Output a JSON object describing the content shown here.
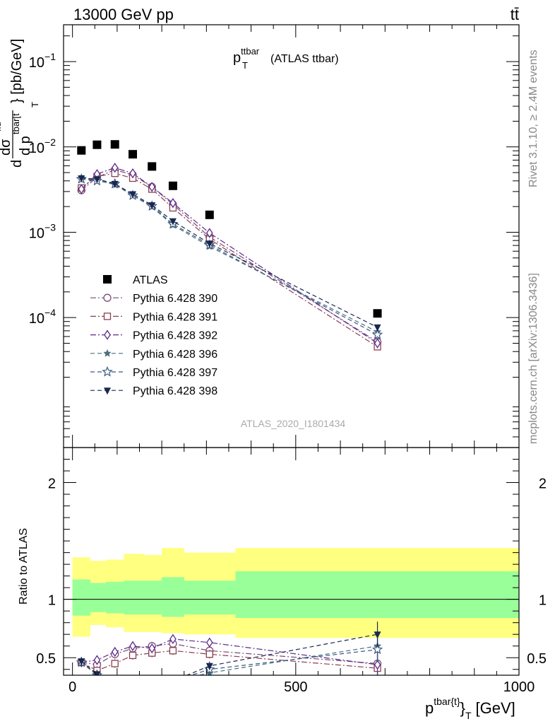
{
  "header": {
    "left": "13000 GeV pp",
    "right": "tt̄",
    "side_top": "Rivet 3.1.10, ≥ 2.4M events",
    "side_bottom": "mcplots.cern.ch [arXiv:1306.3436]"
  },
  "chart_data": [
    {
      "type": "scatter",
      "title_main": "p",
      "title_sup": "ttbar",
      "title_sub": "T",
      "title_rest": "(ATLAS ttbar)",
      "ylabel": "d dσ^fid / d p_T^{tbar[t} } [pb/GeV]",
      "ylabel_parts": {
        "d": "d",
        "dsigma": "dσ",
        "fid": "fid",
        "dp": "d p",
        "tbar": "tbar[t",
        "T": "T",
        "unit": "} [pb/GeV]"
      },
      "watermark": "ATLAS_2020_I1801434",
      "xlim": [
        -20,
        1000
      ],
      "ylim": [
        3e-06,
        0.27
      ],
      "log_y": true,
      "y_ticks": [
        {
          "value": 0.1,
          "base": "10",
          "exp": "−1"
        },
        {
          "value": 0.01,
          "base": "10",
          "exp": "−2"
        },
        {
          "value": 0.001,
          "base": "10",
          "exp": "−3"
        },
        {
          "value": 0.0001,
          "base": "10",
          "exp": "−4"
        }
      ],
      "legend_position": "lower-left",
      "series": [
        {
          "name": "ATLAS",
          "color": "#000000",
          "marker": "square-filled",
          "line": "none",
          "x": [
            20,
            55,
            95,
            135,
            178,
            225,
            307,
            683
          ],
          "y": [
            0.0091,
            0.0106,
            0.0107,
            0.0082,
            0.0059,
            0.0035,
            0.0016,
            0.000112
          ]
        },
        {
          "name": "Pythia 6.428 390",
          "color": "#7a4a7a",
          "marker": "circle-open",
          "line": "dashdot",
          "x": [
            20,
            55,
            95,
            135,
            178,
            225,
            307,
            683
          ],
          "y": [
            0.0031,
            0.0044,
            0.0054,
            0.0047,
            0.0034,
            0.00212,
            0.00088,
            5.2e-05
          ]
        },
        {
          "name": "Pythia 6.428 391",
          "color": "#8a4050",
          "marker": "square-open",
          "line": "dashdot",
          "x": [
            20,
            55,
            95,
            135,
            178,
            225,
            307,
            683
          ],
          "y": [
            0.0033,
            0.0045,
            0.0049,
            0.0043,
            0.0032,
            0.00193,
            0.00083,
            4.55e-05
          ]
        },
        {
          "name": "Pythia 6.428 392",
          "color": "#5a2a8a",
          "marker": "diamond-open",
          "line": "dashdot",
          "x": [
            20,
            55,
            95,
            135,
            178,
            225,
            307,
            683
          ],
          "y": [
            0.0032,
            0.0048,
            0.0057,
            0.0049,
            0.0034,
            0.0022,
            0.00098,
            5e-05
          ]
        },
        {
          "name": "Pythia 6.428 396",
          "color": "#4a7080",
          "marker": "star-filled",
          "line": "dashed",
          "x": [
            20,
            55,
            95,
            135,
            178,
            225,
            307,
            683
          ],
          "y": [
            0.0043,
            0.0041,
            0.0036,
            0.0027,
            0.00198,
            0.00121,
            0.00068,
            6.8e-05
          ]
        },
        {
          "name": "Pythia 6.428 397",
          "color": "#3a5a80",
          "marker": "star-open",
          "line": "dashed",
          "x": [
            20,
            55,
            95,
            135,
            178,
            225,
            307,
            683
          ],
          "y": [
            0.0042,
            0.004,
            0.0037,
            0.0027,
            0.00203,
            0.00125,
            0.00071,
            6.3e-05
          ]
        },
        {
          "name": "Pythia 6.428 398",
          "color": "#1a2850",
          "marker": "triangle-down-filled",
          "line": "dashed",
          "x": [
            20,
            55,
            95,
            135,
            178,
            225,
            307,
            683
          ],
          "y": [
            0.0043,
            0.0042,
            0.0037,
            0.0028,
            0.00208,
            0.00135,
            0.00074,
            7.7e-05
          ]
        }
      ]
    },
    {
      "type": "scatter",
      "ylabel": "Ratio to ATLAS",
      "xlabel_main": "p",
      "xlabel_sup": "tbar{t}",
      "xlabel_sub": "T",
      "xlabel_unit": "[GeV]",
      "xlim": [
        -20,
        1000
      ],
      "ylim": [
        0.35,
        2.3
      ],
      "x_ticks": [
        {
          "value": 0,
          "label": "0"
        },
        {
          "value": 500,
          "label": "500"
        },
        {
          "value": 1000,
          "label": "1000"
        }
      ],
      "y_ticks": [
        {
          "value": 0.5,
          "label": "0.5"
        },
        {
          "value": 1,
          "label": "1"
        },
        {
          "value": 2,
          "label": "2"
        }
      ],
      "bins": [
        0,
        40,
        75,
        115,
        160,
        200,
        250,
        365,
        1000
      ],
      "band_stat": [
        [
          0.86,
          1.17
        ],
        [
          0.89,
          1.14
        ],
        [
          0.88,
          1.15
        ],
        [
          0.87,
          1.16
        ],
        [
          0.87,
          1.16
        ],
        [
          0.85,
          1.19
        ],
        [
          0.87,
          1.16
        ],
        [
          0.84,
          1.24
        ]
      ],
      "band_total": [
        [
          0.68,
          1.36
        ],
        [
          0.78,
          1.33
        ],
        [
          0.76,
          1.34
        ],
        [
          0.72,
          1.39
        ],
        [
          0.72,
          1.38
        ],
        [
          0.71,
          1.44
        ],
        [
          0.7,
          1.4
        ],
        [
          0.67,
          1.44
        ]
      ],
      "series": [
        {
          "name": "Pythia 6.428 390",
          "color": "#7a4a7a",
          "marker": "circle-open",
          "line": "dashdot",
          "x": [
            20,
            55,
            95,
            135,
            178,
            225,
            307,
            683
          ],
          "y": [
            0.46,
            0.44,
            0.53,
            0.58,
            0.6,
            0.62,
            0.56,
            0.45
          ]
        },
        {
          "name": "Pythia 6.428 391",
          "color": "#8a4050",
          "marker": "square-open",
          "line": "dashdot",
          "x": [
            20,
            55,
            95,
            135,
            178,
            225,
            307,
            683
          ],
          "y": [
            0.46,
            0.39,
            0.45,
            0.52,
            0.54,
            0.56,
            0.53,
            0.41
          ]
        },
        {
          "name": "Pythia 6.428 392",
          "color": "#5a2a8a",
          "marker": "diamond-open",
          "line": "dashdot",
          "x": [
            20,
            55,
            95,
            135,
            178,
            225,
            307,
            683
          ],
          "y": [
            0.46,
            0.48,
            0.55,
            0.6,
            0.58,
            0.66,
            0.63,
            0.44
          ]
        },
        {
          "name": "Pythia 6.428 396",
          "color": "#4a7080",
          "marker": "star-filled",
          "line": "dashed",
          "x": [
            20,
            55,
            95,
            135,
            178,
            225,
            307,
            683
          ],
          "y": [
            0.46,
            0.35,
            0.26,
            0.3,
            0.3,
            0.3,
            0.37,
            0.6
          ]
        },
        {
          "name": "Pythia 6.428 397",
          "color": "#3a5a80",
          "marker": "star-open",
          "line": "dashed",
          "x": [
            20,
            55,
            95,
            135,
            178,
            225,
            307,
            683
          ],
          "y": [
            0.46,
            0.35,
            0.27,
            0.3,
            0.3,
            0.3,
            0.4,
            0.57
          ]
        },
        {
          "name": "Pythia 6.428 398",
          "color": "#1a2850",
          "marker": "triangle-down-filled",
          "line": "dashed",
          "x": [
            20,
            55,
            95,
            135,
            178,
            225,
            307,
            683
          ],
          "y": [
            0.47,
            0.36,
            0.28,
            0.3,
            0.3,
            0.3,
            0.43,
            0.7
          ]
        }
      ]
    }
  ]
}
